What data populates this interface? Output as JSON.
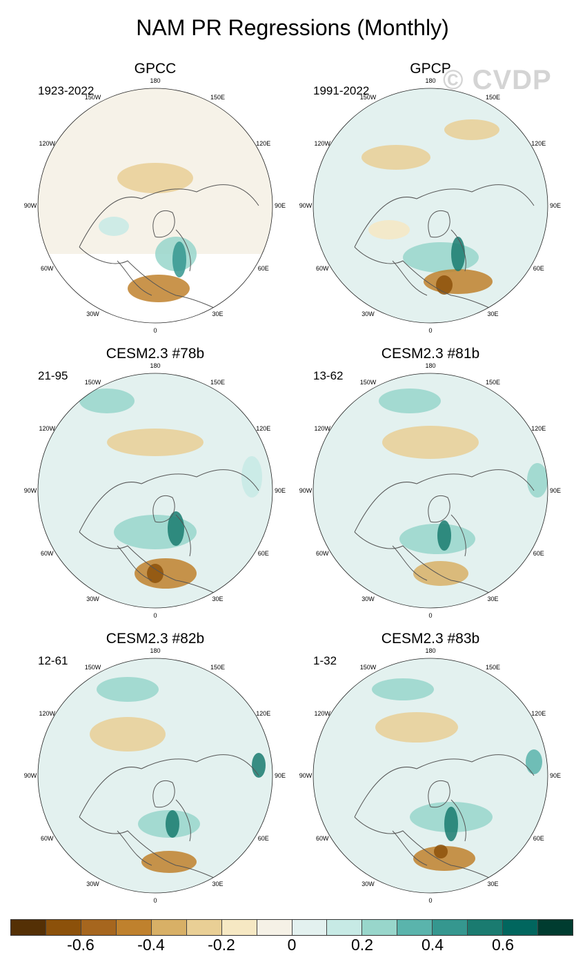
{
  "title": "NAM PR Regressions (Monthly)",
  "watermark": "© CVDP",
  "lon_labels": [
    "180",
    "150E",
    "120E",
    "90E",
    "60E",
    "30E",
    "0",
    "30W",
    "60W",
    "90W",
    "120W",
    "150W"
  ],
  "panels": [
    {
      "title": "GPCC",
      "period": "1923-2022"
    },
    {
      "title": "GPCP",
      "period": "1991-2022"
    },
    {
      "title": "CESM2.3 #78b",
      "period": "21-95"
    },
    {
      "title": "CESM2.3 #81b",
      "period": "13-62"
    },
    {
      "title": "CESM2.3 #82b",
      "period": "12-61"
    },
    {
      "title": "CESM2.3 #83b",
      "period": "1-32"
    }
  ],
  "colorbar": {
    "colors": [
      "#543005",
      "#8c510a",
      "#a6661e",
      "#bf812d",
      "#d8b066",
      "#e9cf95",
      "#f6e8c3",
      "#f5f1e6",
      "#e3f1ef",
      "#c7eae5",
      "#98d6cb",
      "#5ab4ac",
      "#35978f",
      "#1a7b70",
      "#01665e",
      "#003c30"
    ],
    "labels": [
      "-0.6",
      "-0.4",
      "-0.2",
      "0",
      "0.2",
      "0.4",
      "0.6"
    ]
  }
}
